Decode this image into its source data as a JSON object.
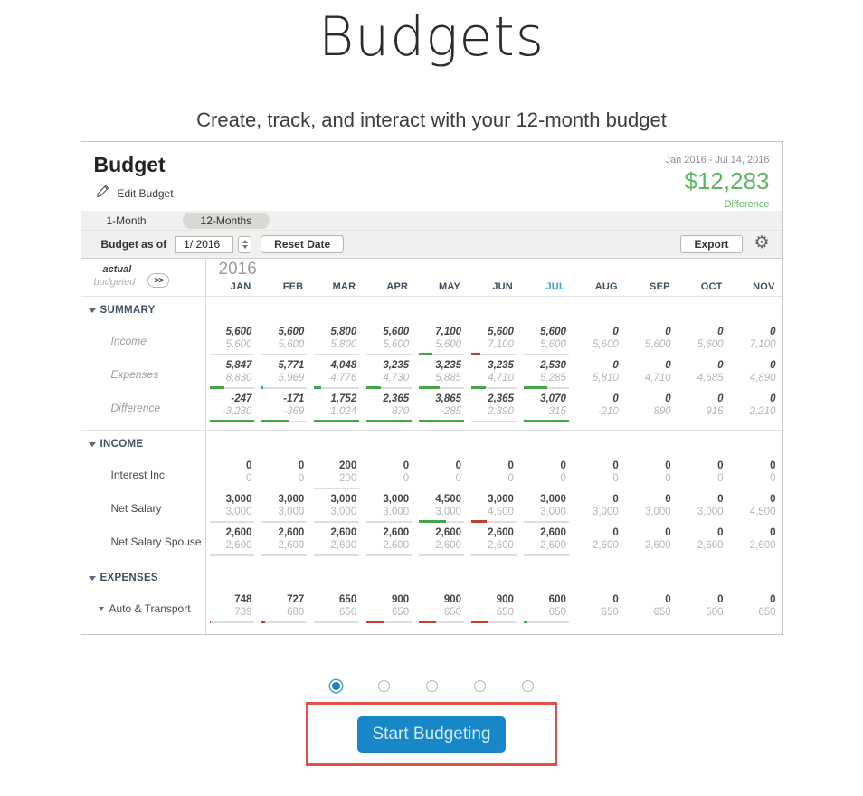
{
  "page": {
    "title": "Budgets",
    "subtitle": "Create, track, and interact with your 12-month budget"
  },
  "panel": {
    "title": "Budget",
    "edit_label": "Edit Budget",
    "date_range": "Jan 2016 - Jul 14, 2016",
    "total": "$12,283",
    "total_caption": "Difference",
    "tabs": [
      {
        "label": "1-Month",
        "selected": false
      },
      {
        "label": "12-Months",
        "selected": true
      }
    ],
    "controls": {
      "budget_as_of_label": "Budget as of",
      "date_value": "1/ 2016",
      "reset_label": "Reset Date",
      "export_label": "Export",
      "gear_icon": "gear"
    },
    "table": {
      "year": "2016",
      "legend": {
        "actual": "actual",
        "budgeted": "budgeted",
        "expand_label": ">>"
      },
      "months": [
        "JAN",
        "FEB",
        "MAR",
        "APR",
        "MAY",
        "JUN",
        "JUL",
        "AUG",
        "SEP",
        "OCT",
        "NOV"
      ],
      "current_month": "JUL",
      "sections": [
        {
          "label": "SUMMARY",
          "italic_rows": true,
          "rows": [
            {
              "label": "Income",
              "expandable": false,
              "cells": [
                {
                  "a": "5,600",
                  "b": "5,600",
                  "u": 1
                },
                {
                  "a": "5,600",
                  "b": "5,600",
                  "u": 1
                },
                {
                  "a": "5,800",
                  "b": "5,800",
                  "u": 1
                },
                {
                  "a": "5,600",
                  "b": "5,600",
                  "u": 1
                },
                {
                  "a": "7,100",
                  "b": "5,600",
                  "u": 1,
                  "bar": "g",
                  "f": 0.3
                },
                {
                  "a": "5,600",
                  "b": "7,100",
                  "u": 1,
                  "bar": "r",
                  "f": 0.2
                },
                {
                  "a": "5,600",
                  "b": "5,600",
                  "u": 1
                },
                {
                  "a": "0",
                  "b": "5,600",
                  "u": 0
                },
                {
                  "a": "0",
                  "b": "5,600",
                  "u": 0
                },
                {
                  "a": "0",
                  "b": "5,600",
                  "u": 0
                },
                {
                  "a": "0",
                  "b": "7,100",
                  "u": 0
                }
              ]
            },
            {
              "label": "Expenses",
              "expandable": false,
              "cells": [
                {
                  "a": "5,847",
                  "b": "8,830",
                  "u": 1,
                  "bar": "g",
                  "f": 0.34
                },
                {
                  "a": "5,771",
                  "b": "5,969",
                  "u": 1,
                  "bar": "g",
                  "f": 0.04
                },
                {
                  "a": "4,048",
                  "b": "4,776",
                  "u": 1,
                  "bar": "g",
                  "f": 0.15
                },
                {
                  "a": "3,235",
                  "b": "4,730",
                  "u": 1,
                  "bar": "g",
                  "f": 0.32
                },
                {
                  "a": "3,235",
                  "b": "5,885",
                  "u": 1,
                  "bar": "g",
                  "f": 0.45
                },
                {
                  "a": "3,235",
                  "b": "4,710",
                  "u": 1,
                  "bar": "g",
                  "f": 0.31
                },
                {
                  "a": "2,530",
                  "b": "5,285",
                  "u": 1,
                  "bar": "g",
                  "f": 0.52
                },
                {
                  "a": "0",
                  "b": "5,810",
                  "u": 0
                },
                {
                  "a": "0",
                  "b": "4,710",
                  "u": 0
                },
                {
                  "a": "0",
                  "b": "4,685",
                  "u": 0
                },
                {
                  "a": "0",
                  "b": "4,890",
                  "u": 0
                }
              ]
            },
            {
              "label": "Difference",
              "expandable": false,
              "cells": [
                {
                  "a": "-247",
                  "b": "-3,230",
                  "u": 1,
                  "bar": "g",
                  "f": 1
                },
                {
                  "a": "-171",
                  "b": "-369",
                  "u": 1,
                  "bar": "g",
                  "f": 0.6
                },
                {
                  "a": "1,752",
                  "b": "1,024",
                  "u": 1,
                  "bar": "g",
                  "f": 1
                },
                {
                  "a": "2,365",
                  "b": "870",
                  "u": 1,
                  "bar": "g",
                  "f": 1
                },
                {
                  "a": "3,865",
                  "b": "-285",
                  "u": 1,
                  "bar": "g",
                  "f": 1
                },
                {
                  "a": "2,365",
                  "b": "2,390",
                  "u": 1
                },
                {
                  "a": "3,070",
                  "b": "315",
                  "u": 1,
                  "bar": "g",
                  "f": 1
                },
                {
                  "a": "0",
                  "b": "-210",
                  "u": 0
                },
                {
                  "a": "0",
                  "b": "890",
                  "u": 0
                },
                {
                  "a": "0",
                  "b": "915",
                  "u": 0
                },
                {
                  "a": "0",
                  "b": "2,210",
                  "u": 0
                }
              ]
            }
          ]
        },
        {
          "label": "INCOME",
          "italic_rows": false,
          "rows": [
            {
              "label": "Interest Inc",
              "expandable": false,
              "cells": [
                {
                  "a": "0",
                  "b": "0",
                  "u": 0
                },
                {
                  "a": "0",
                  "b": "0",
                  "u": 0
                },
                {
                  "a": "200",
                  "b": "200",
                  "u": 1
                },
                {
                  "a": "0",
                  "b": "0",
                  "u": 0
                },
                {
                  "a": "0",
                  "b": "0",
                  "u": 0
                },
                {
                  "a": "0",
                  "b": "0",
                  "u": 0
                },
                {
                  "a": "0",
                  "b": "0",
                  "u": 0
                },
                {
                  "a": "0",
                  "b": "0",
                  "u": 0
                },
                {
                  "a": "0",
                  "b": "0",
                  "u": 0
                },
                {
                  "a": "0",
                  "b": "0",
                  "u": 0
                },
                {
                  "a": "0",
                  "b": "0",
                  "u": 0
                }
              ]
            },
            {
              "label": "Net Salary",
              "expandable": false,
              "cells": [
                {
                  "a": "3,000",
                  "b": "3,000",
                  "u": 1
                },
                {
                  "a": "3,000",
                  "b": "3,000",
                  "u": 1
                },
                {
                  "a": "3,000",
                  "b": "3,000",
                  "u": 1
                },
                {
                  "a": "3,000",
                  "b": "3,000",
                  "u": 1
                },
                {
                  "a": "4,500",
                  "b": "3,000",
                  "u": 1,
                  "bar": "g",
                  "f": 0.6
                },
                {
                  "a": "3,000",
                  "b": "4,500",
                  "u": 1,
                  "bar": "r",
                  "f": 0.33
                },
                {
                  "a": "3,000",
                  "b": "3,000",
                  "u": 1
                },
                {
                  "a": "0",
                  "b": "3,000",
                  "u": 0
                },
                {
                  "a": "0",
                  "b": "3,000",
                  "u": 0
                },
                {
                  "a": "0",
                  "b": "3,000",
                  "u": 0
                },
                {
                  "a": "0",
                  "b": "4,500",
                  "u": 0
                }
              ]
            },
            {
              "label": "Net Salary Spouse",
              "expandable": false,
              "cells": [
                {
                  "a": "2,600",
                  "b": "2,600",
                  "u": 1
                },
                {
                  "a": "2,600",
                  "b": "2,600",
                  "u": 1
                },
                {
                  "a": "2,600",
                  "b": "2,600",
                  "u": 1
                },
                {
                  "a": "2,600",
                  "b": "2,600",
                  "u": 1
                },
                {
                  "a": "2,600",
                  "b": "2,600",
                  "u": 1
                },
                {
                  "a": "2,600",
                  "b": "2,600",
                  "u": 1
                },
                {
                  "a": "2,600",
                  "b": "2,600",
                  "u": 1
                },
                {
                  "a": "0",
                  "b": "2,600",
                  "u": 0
                },
                {
                  "a": "0",
                  "b": "2,600",
                  "u": 0
                },
                {
                  "a": "0",
                  "b": "2,600",
                  "u": 0
                },
                {
                  "a": "0",
                  "b": "2,600",
                  "u": 0
                }
              ]
            }
          ]
        },
        {
          "label": "EXPENSES",
          "italic_rows": false,
          "rows": [
            {
              "label": "Auto & Transport",
              "expandable": true,
              "cells": [
                {
                  "a": "748",
                  "b": "739",
                  "u": 1,
                  "bar": "r",
                  "f": 0.02
                },
                {
                  "a": "727",
                  "b": "680",
                  "u": 1,
                  "bar": "r",
                  "f": 0.07
                },
                {
                  "a": "650",
                  "b": "650",
                  "u": 1
                },
                {
                  "a": "900",
                  "b": "650",
                  "u": 1,
                  "bar": "r",
                  "f": 0.38
                },
                {
                  "a": "900",
                  "b": "650",
                  "u": 1,
                  "bar": "r",
                  "f": 0.38
                },
                {
                  "a": "900",
                  "b": "650",
                  "u": 1,
                  "bar": "r",
                  "f": 0.38
                },
                {
                  "a": "600",
                  "b": "650",
                  "u": 1,
                  "bar": "g",
                  "f": 0.08
                },
                {
                  "a": "0",
                  "b": "650",
                  "u": 0
                },
                {
                  "a": "0",
                  "b": "650",
                  "u": 0
                },
                {
                  "a": "0",
                  "b": "500",
                  "u": 0
                },
                {
                  "a": "0",
                  "b": "650",
                  "u": 0
                }
              ]
            }
          ]
        }
      ]
    }
  },
  "carousel": {
    "dot_count": 5,
    "active_index": 0
  },
  "cta": {
    "label": "Start Budgeting"
  },
  "colors": {
    "total_green": "#5cb85c",
    "bar_green": "#44a747",
    "bar_red": "#bf3f34",
    "header_navy": "#3e5062",
    "current_month_blue": "#3aa0d8",
    "button_blue": "#1787c7",
    "annotation_red": "#e2504a"
  }
}
